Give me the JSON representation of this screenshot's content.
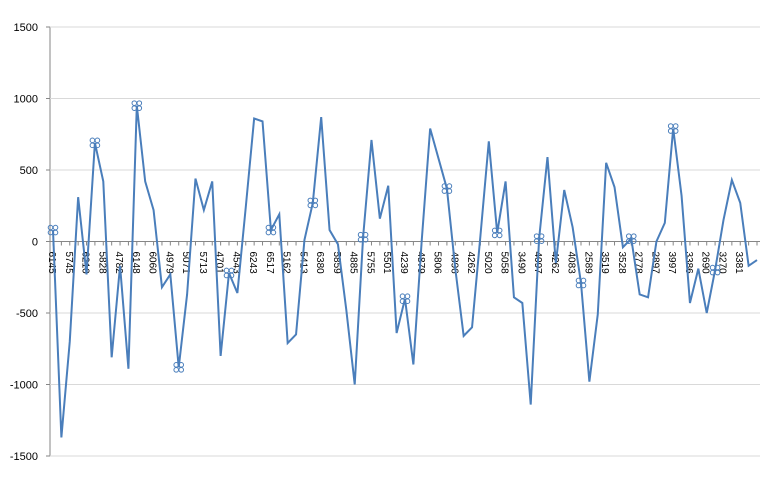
{
  "chart_data": {
    "type": "line",
    "categories": [
      "6145",
      null,
      "5745",
      null,
      "6210",
      null,
      "5828",
      null,
      "4782",
      null,
      "6148",
      null,
      "6060",
      null,
      "4979",
      null,
      "5071",
      null,
      "5713",
      null,
      "4701",
      null,
      "4543",
      null,
      "6243",
      null,
      "6517",
      null,
      "5162",
      null,
      "5413",
      null,
      "6380",
      null,
      "5859",
      null,
      "4885",
      null,
      "5755",
      null,
      "5501",
      null,
      "4239",
      null,
      "4879",
      null,
      "5806",
      null,
      "4896",
      null,
      "4262",
      null,
      "5020",
      null,
      "5058",
      null,
      "3490",
      null,
      "4097",
      null,
      "4262",
      null,
      "4083",
      null,
      "2589",
      null,
      "3519",
      null,
      "3528",
      null,
      "2778",
      null,
      "2897",
      null,
      "3997",
      null,
      "3386",
      null,
      "2690",
      null,
      "3270",
      null,
      "3381",
      null,
      null
    ],
    "series": [
      {
        "color": "#4a7ebb",
        "values": [
          80,
          -1370,
          -700,
          310,
          -230,
          690,
          420,
          -810,
          -170,
          -890,
          950,
          420,
          220,
          -320,
          -230,
          -880,
          -370,
          440,
          220,
          420,
          -800,
          -220,
          -360,
          240,
          860,
          840,
          80,
          190,
          -710,
          -650,
          10,
          270,
          870,
          80,
          -20,
          -480,
          -1000,
          30,
          710,
          160,
          390,
          -640,
          -400,
          -860,
          10,
          790,
          580,
          370,
          -190,
          -660,
          -600,
          40,
          700,
          60,
          420,
          -390,
          -430,
          -1140,
          20,
          590,
          -150,
          360,
          100,
          -290,
          -980,
          -510,
          550,
          380,
          -40,
          20,
          -370,
          -390,
          0,
          130,
          790,
          320,
          -430,
          -190,
          -500,
          -200,
          150,
          430,
          270,
          -170,
          -130
        ]
      },
      {
        "color": "#4a7ebb",
        "line": false,
        "values": [
          80,
          null,
          null,
          null,
          null,
          690,
          null,
          null,
          null,
          null,
          950,
          null,
          null,
          null,
          null,
          -880,
          null,
          null,
          null,
          null,
          null,
          -220,
          null,
          null,
          null,
          null,
          80,
          null,
          null,
          null,
          null,
          270,
          null,
          null,
          null,
          null,
          null,
          30,
          null,
          null,
          null,
          null,
          -400,
          null,
          null,
          null,
          null,
          370,
          null,
          null,
          null,
          null,
          null,
          60,
          null,
          null,
          null,
          null,
          20,
          null,
          null,
          null,
          null,
          -290,
          null,
          null,
          null,
          null,
          null,
          20,
          null,
          null,
          null,
          null,
          790,
          null,
          null,
          null,
          null,
          -200,
          null,
          null,
          null,
          null,
          null
        ]
      }
    ],
    "ylim": [
      -1500,
      1500
    ],
    "yticks": [
      -1500,
      -1000,
      -500,
      0,
      500,
      1000,
      1500
    ],
    "grid": true
  }
}
